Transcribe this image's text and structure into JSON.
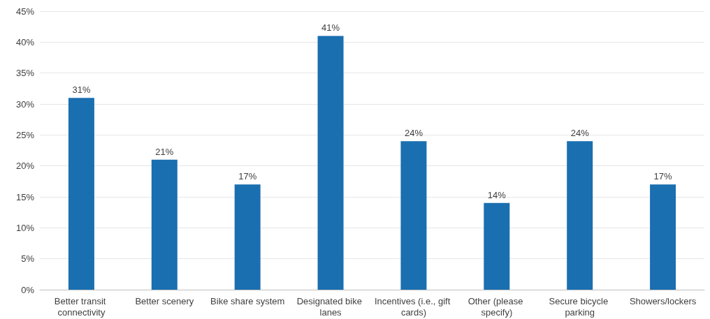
{
  "chart_data": {
    "type": "bar",
    "categories": [
      "Better transit connectivity",
      "Better scenery",
      "Bike share system",
      "Designated bike lanes",
      "Incentives (i.e., gift cards)",
      "Other (please specify)",
      "Secure bicycle parking",
      "Showers/lockers"
    ],
    "values": [
      31,
      21,
      17,
      41,
      24,
      14,
      24,
      17
    ],
    "value_labels": [
      "31%",
      "21%",
      "17%",
      "41%",
      "24%",
      "14%",
      "24%",
      "17%"
    ],
    "color": "#1a6fb0",
    "ylim": [
      0,
      45
    ],
    "yticks": [
      {
        "value": 0,
        "label": "0%"
      },
      {
        "value": 5,
        "label": "5%"
      },
      {
        "value": 10,
        "label": "10%"
      },
      {
        "value": 15,
        "label": "15%"
      },
      {
        "value": 20,
        "label": "20%"
      },
      {
        "value": 25,
        "label": "25%"
      },
      {
        "value": 30,
        "label": "30%"
      },
      {
        "value": 35,
        "label": "35%"
      },
      {
        "value": 40,
        "label": "40%"
      },
      {
        "value": 45,
        "label": "45%"
      }
    ],
    "grid": "y"
  }
}
